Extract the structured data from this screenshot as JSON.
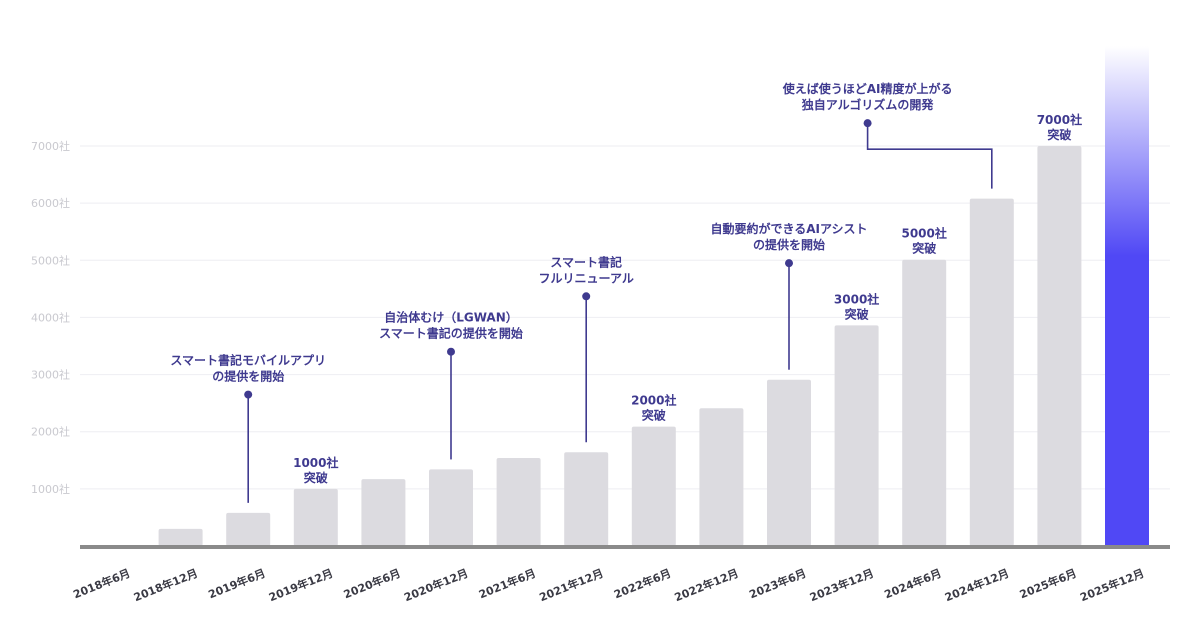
{
  "chart_data": {
    "type": "bar",
    "categories": [
      "2018年6月",
      "2018年12月",
      "2019年6月",
      "2019年12月",
      "2020年6月",
      "2020年12月",
      "2021年6月",
      "2021年12月",
      "2022年6月",
      "2022年12月",
      "2023年6月",
      "2023年12月",
      "2024年6月",
      "2024年12月",
      "2025年6月",
      "2025年12月"
    ],
    "values": [
      0,
      300,
      580,
      1000,
      1170,
      1340,
      1540,
      1640,
      2090,
      2410,
      2910,
      3860,
      5010,
      6080,
      7000,
      8750
    ],
    "highlight_index": 15,
    "ylim": [
      0,
      8750
    ],
    "ytick_values": [
      1000,
      2000,
      3000,
      4000,
      5000,
      6000,
      7000
    ],
    "ytick_labels": [
      "1000社",
      "2000社",
      "3000社",
      "4000社",
      "5000社",
      "6000社",
      "7000社"
    ],
    "grid": true,
    "title": "",
    "xlabel": "",
    "ylabel": "",
    "value_labels": [
      {
        "index": 3,
        "lines": [
          "1000社",
          "突破"
        ]
      },
      {
        "index": 8,
        "lines": [
          "2000社",
          "突破"
        ]
      },
      {
        "index": 11,
        "lines": [
          "3000社",
          "突破"
        ]
      },
      {
        "index": 12,
        "lines": [
          "5000社",
          "突破"
        ]
      },
      {
        "index": 14,
        "lines": [
          "7000社",
          "突破"
        ]
      }
    ],
    "annotations": [
      {
        "index": 2,
        "value": 2650,
        "lines": [
          "スマート書記モバイルアプリ",
          "の提供を開始"
        ]
      },
      {
        "index": 5,
        "value": 3400,
        "lines": [
          "自治体むけ（LGWAN）",
          "スマート書記の提供を開始"
        ]
      },
      {
        "index": 7,
        "value": 4370,
        "lines": [
          "スマート書記",
          "フルリニューアル"
        ]
      },
      {
        "index": 10,
        "value": 4950,
        "lines": [
          "自動要約ができるAIアシスト",
          "の提供を開始"
        ]
      },
      {
        "index": 13,
        "value": 7400,
        "lines": [
          "使えば使うほどAI精度が上がる",
          "独自アルゴリズムの開発"
        ],
        "elbow_from_index": 11
      }
    ],
    "colors": {
      "bar": "#dcdbe0",
      "highlight_top": "#ffffff",
      "highlight_bottom": "#5048f5",
      "annotation": "#3f3a8f",
      "axis": "#8a8a8a",
      "grid": "#eeeef2",
      "ytick": "#c9c9cf",
      "xtick": "#3a3a44"
    }
  }
}
